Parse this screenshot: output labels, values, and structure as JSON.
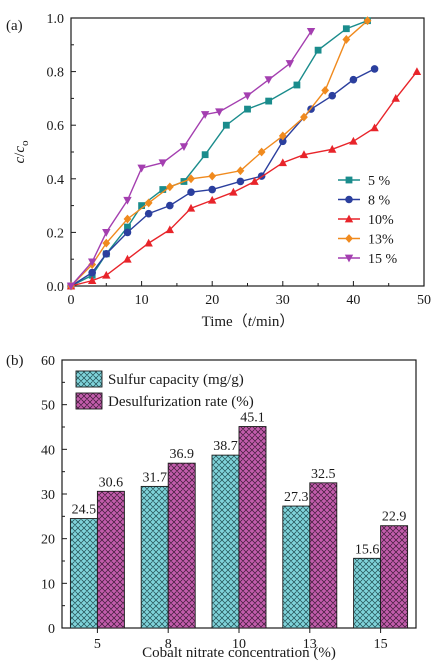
{
  "chart_data": [
    {
      "type": "line",
      "panel_label": "(a)",
      "xlabel": "Time（ t/min）",
      "xlabel_parts": {
        "pre": "Time（",
        "var": "t",
        "post": "/min）"
      },
      "ylabel": "c/c0",
      "ylabel_parts": {
        "c": "c",
        "slash": "/",
        "c2": "c",
        "sub": "o"
      },
      "xlim": [
        0,
        50
      ],
      "ylim": [
        0,
        1.0
      ],
      "xticks": [
        "0",
        "10",
        "20",
        "30",
        "40",
        "50"
      ],
      "yticks": [
        "0.0",
        "0.2",
        "0.4",
        "0.6",
        "0.8",
        "1.0"
      ],
      "legend_position": "bottom-right",
      "series": [
        {
          "name": "5 %",
          "color": "#1a8c8c",
          "marker": "square",
          "x": [
            0,
            3,
            5,
            8,
            10,
            13,
            16,
            19,
            22,
            25,
            28,
            32,
            35,
            39,
            42
          ],
          "y": [
            0,
            0.04,
            0.12,
            0.22,
            0.3,
            0.36,
            0.39,
            0.49,
            0.6,
            0.66,
            0.69,
            0.75,
            0.88,
            0.96,
            0.99
          ]
        },
        {
          "name": "8 %",
          "color": "#2b3f9e",
          "marker": "circle",
          "x": [
            0,
            3,
            5,
            8,
            11,
            14,
            17,
            20,
            24,
            27,
            30,
            34,
            37,
            40,
            43
          ],
          "y": [
            0,
            0.05,
            0.12,
            0.2,
            0.27,
            0.3,
            0.35,
            0.36,
            0.39,
            0.41,
            0.54,
            0.66,
            0.71,
            0.77,
            0.81
          ]
        },
        {
          "name": "10%",
          "color": "#e8242a",
          "marker": "triangle-up",
          "x": [
            0,
            3,
            5,
            8,
            11,
            14,
            17,
            20,
            23,
            26,
            30,
            33,
            37,
            40,
            43,
            46,
            49
          ],
          "y": [
            0,
            0.02,
            0.04,
            0.1,
            0.16,
            0.21,
            0.29,
            0.32,
            0.35,
            0.39,
            0.46,
            0.49,
            0.51,
            0.54,
            0.59,
            0.7,
            0.8
          ]
        },
        {
          "name": "13%",
          "color": "#f08a1e",
          "marker": "diamond",
          "x": [
            0,
            3,
            5,
            8,
            11,
            14,
            17,
            20,
            24,
            27,
            30,
            33,
            36,
            39,
            42
          ],
          "y": [
            0,
            0.08,
            0.16,
            0.25,
            0.31,
            0.37,
            0.4,
            0.41,
            0.43,
            0.5,
            0.56,
            0.63,
            0.73,
            0.92,
            0.99
          ]
        },
        {
          "name": "15 %",
          "color": "#a43fb0",
          "marker": "triangle-down",
          "x": [
            0,
            3,
            5,
            8,
            10,
            13,
            16,
            19,
            21,
            25,
            28,
            31,
            34
          ],
          "y": [
            0,
            0.09,
            0.2,
            0.32,
            0.44,
            0.46,
            0.52,
            0.64,
            0.65,
            0.71,
            0.77,
            0.83,
            0.95
          ]
        }
      ]
    },
    {
      "type": "bar",
      "panel_label": "(b)",
      "xlabel": "Cobalt nitrate concentration (%)",
      "ylabel": "",
      "categories": [
        "5",
        "8",
        "10",
        "13",
        "15"
      ],
      "ylim": [
        0,
        60
      ],
      "yticks": [
        "0",
        "10",
        "20",
        "30",
        "40",
        "50",
        "60"
      ],
      "legend_position": "top-left",
      "series": [
        {
          "name": "Sulfur capacity (mg/g)",
          "color": "#7fd3da",
          "pattern": "crosshatch",
          "values": [
            24.5,
            31.7,
            38.7,
            27.3,
            15.6
          ],
          "labels": [
            "24.5",
            "31.7",
            "38.7",
            "27.3",
            "15.6"
          ]
        },
        {
          "name": "Desulfurization rate (%)",
          "color": "#c25cab",
          "pattern": "crosshatch",
          "values": [
            30.6,
            36.9,
            45.1,
            32.5,
            22.9
          ],
          "labels": [
            "30.6",
            "36.9",
            "45.1",
            "32.5",
            "22.9"
          ]
        }
      ]
    }
  ]
}
